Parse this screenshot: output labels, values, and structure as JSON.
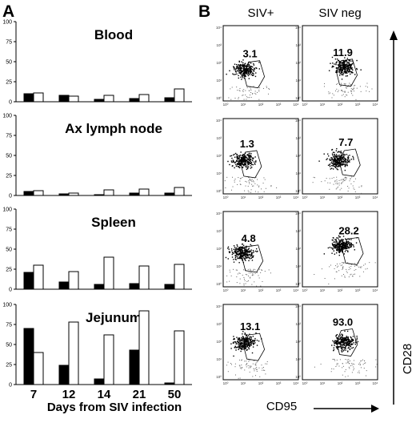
{
  "panel_labels": {
    "a": "A",
    "b": "B"
  },
  "chart_data": [
    {
      "type": "bar",
      "title": "Blood",
      "categories": [
        "7",
        "12",
        "14",
        "21",
        "50"
      ],
      "ylim": [
        0,
        100
      ],
      "yticks": [
        0,
        25,
        50,
        75,
        100
      ],
      "series": [
        {
          "values": [
            10,
            8,
            3,
            4,
            5
          ]
        },
        {
          "values": [
            11,
            7,
            8,
            9,
            16
          ]
        }
      ]
    },
    {
      "type": "bar",
      "title": "Ax lymph node",
      "categories": [
        "7",
        "12",
        "14",
        "21",
        "50"
      ],
      "ylim": [
        0,
        100
      ],
      "yticks": [
        0,
        25,
        50,
        75,
        100
      ],
      "series": [
        {
          "values": [
            5,
            2,
            1,
            3,
            3
          ]
        },
        {
          "values": [
            6,
            3,
            7,
            8,
            10
          ]
        }
      ]
    },
    {
      "type": "bar",
      "title": "Spleen",
      "categories": [
        "7",
        "12",
        "14",
        "21",
        "50"
      ],
      "ylim": [
        0,
        100
      ],
      "yticks": [
        0,
        25,
        50,
        75,
        100
      ],
      "series": [
        {
          "values": [
            21,
            9,
            6,
            7,
            6
          ]
        },
        {
          "values": [
            30,
            22,
            40,
            29,
            31
          ]
        }
      ]
    },
    {
      "type": "bar",
      "title": "Jejunum",
      "categories": [
        "7",
        "12",
        "14",
        "21",
        "50"
      ],
      "ylim": [
        0,
        100
      ],
      "yticks": [
        0,
        25,
        50,
        75,
        100
      ],
      "xlabel": "Days from SIV infection",
      "series": [
        {
          "values": [
            70,
            24,
            7,
            43,
            2
          ]
        },
        {
          "values": [
            40,
            78,
            62,
            92,
            67
          ]
        }
      ]
    },
    {
      "type": "scatter",
      "columns": [
        "SIV+",
        "SIV neg"
      ],
      "xlabel": "CD95",
      "ylabel": "CD28",
      "tick_labels": [
        "10⁰",
        "10¹",
        "10²",
        "10³",
        "10⁴"
      ],
      "gate_percentages": [
        [
          "3.1",
          "11.9"
        ],
        [
          "1.3",
          "7.7"
        ],
        [
          "4.8",
          "28.2"
        ],
        [
          "13.1",
          "93.0"
        ]
      ]
    }
  ]
}
